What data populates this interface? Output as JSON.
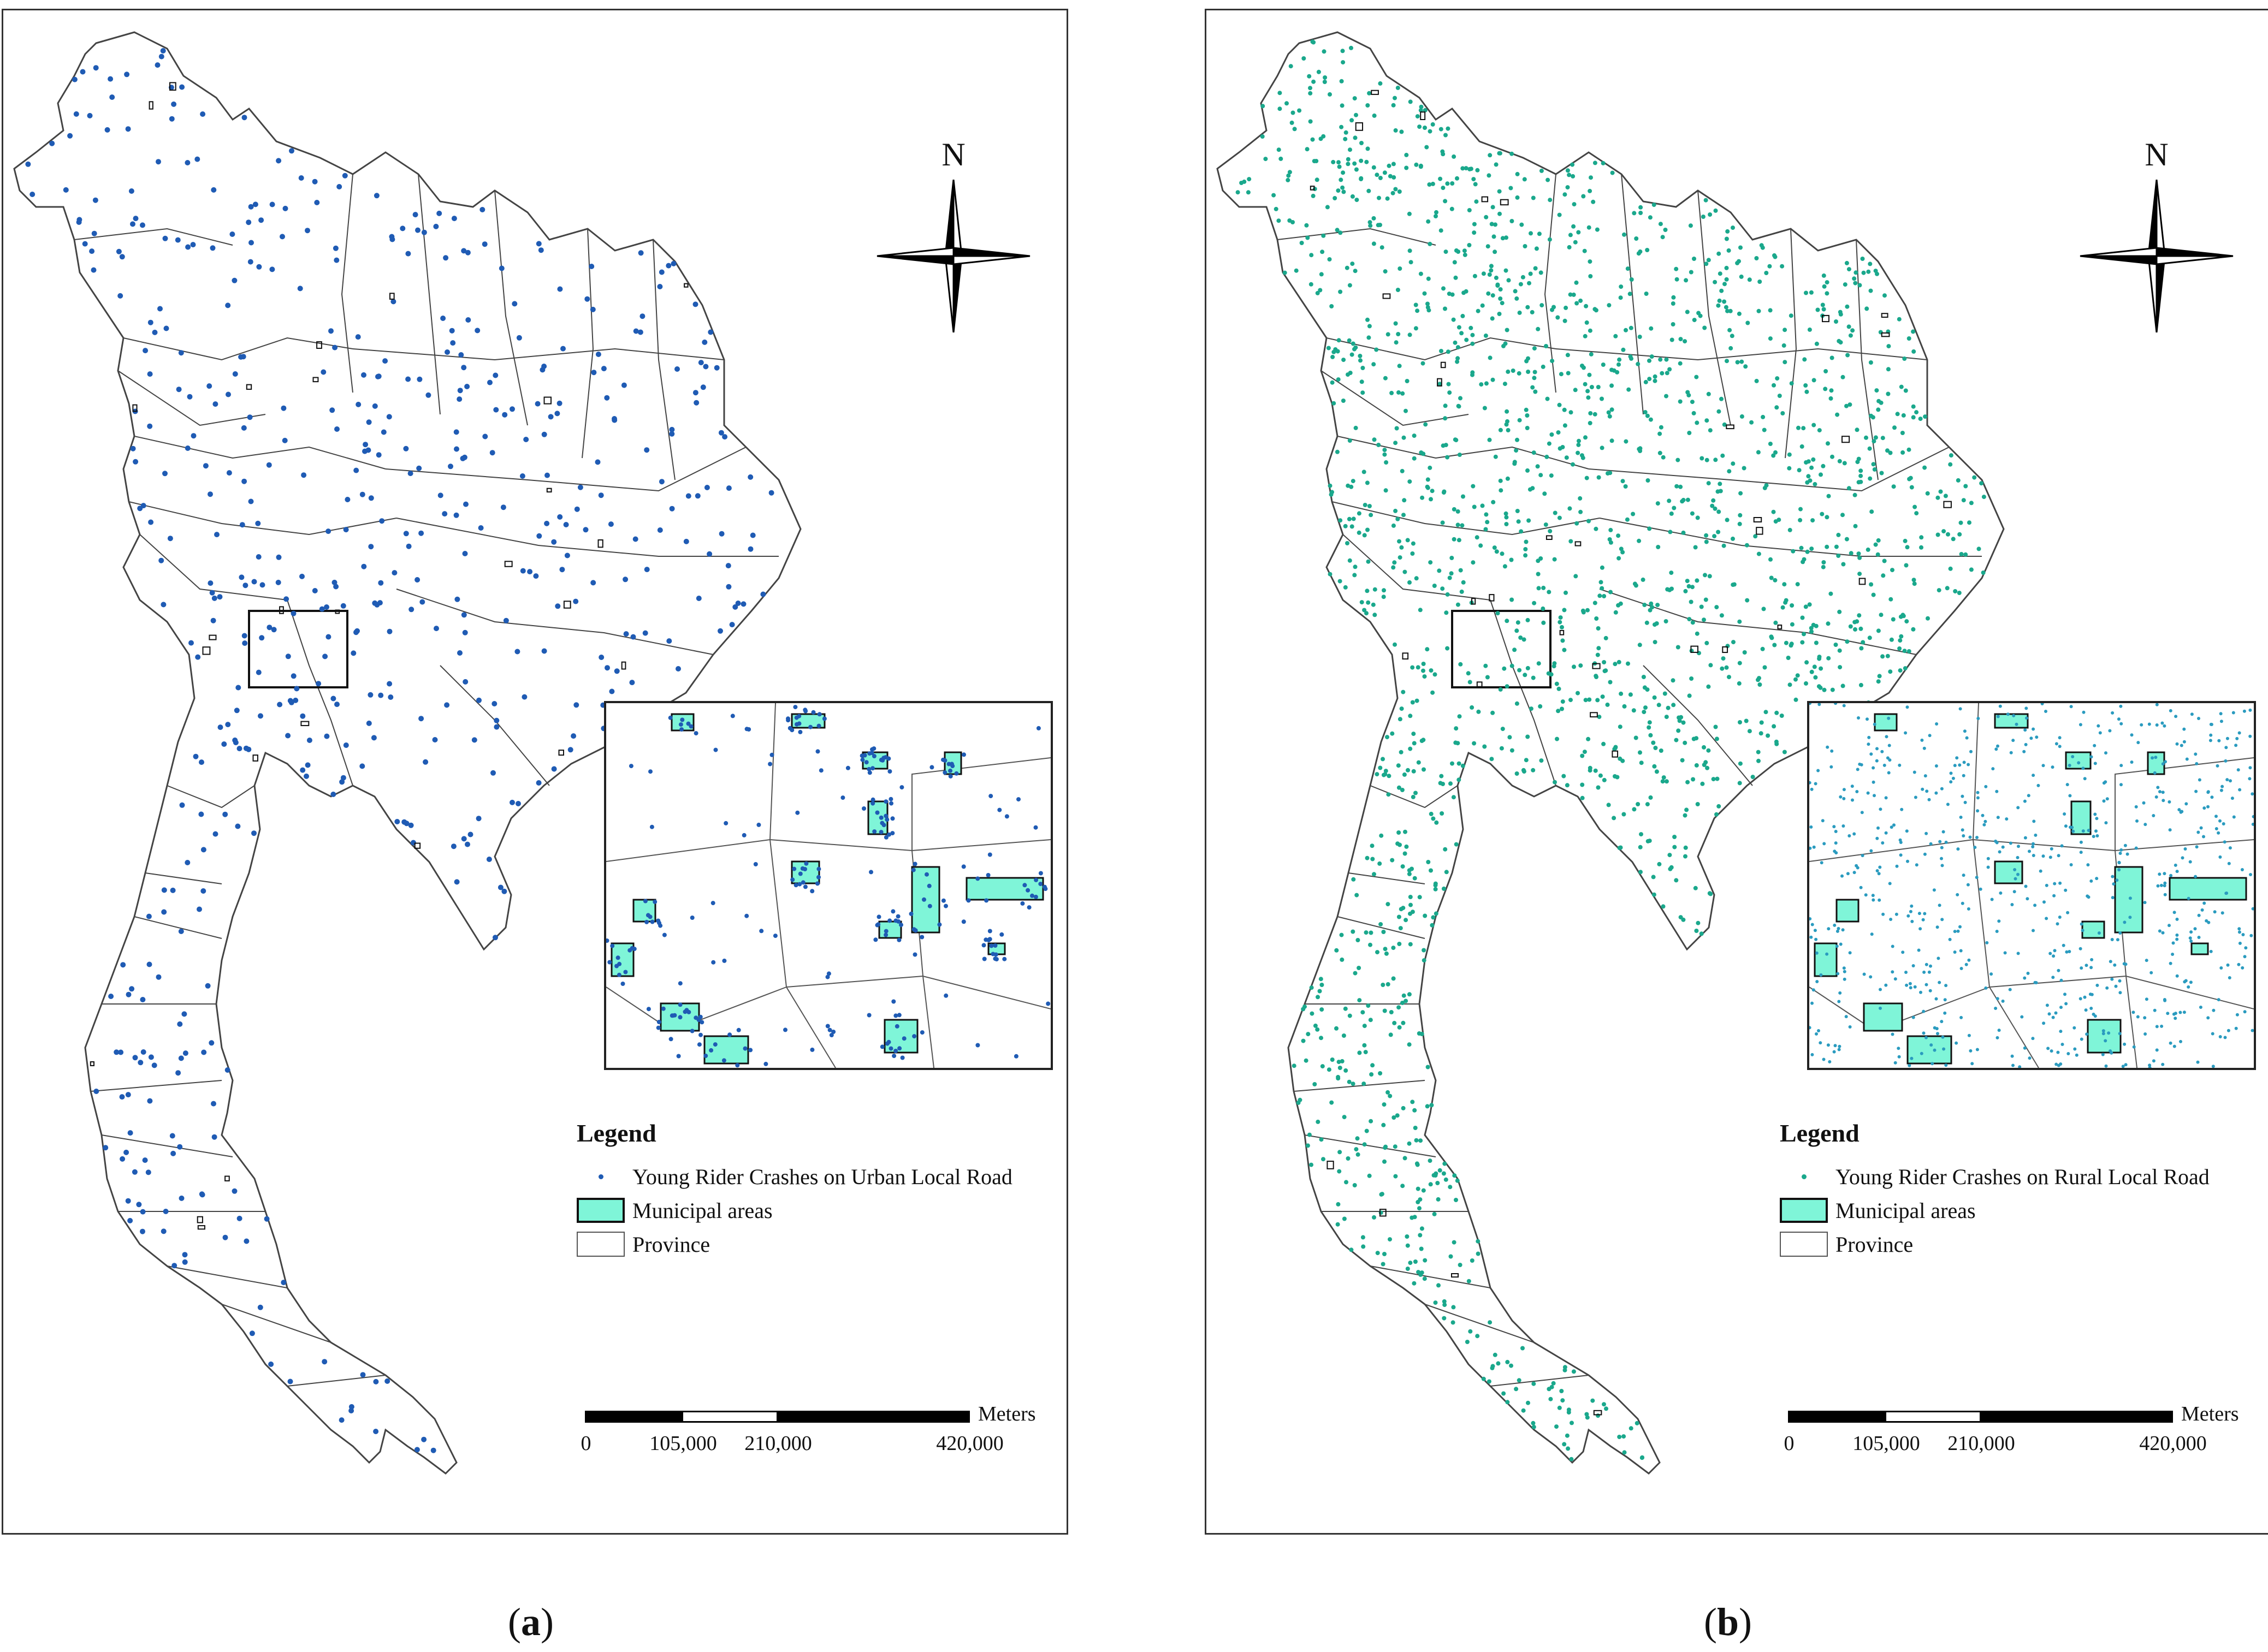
{
  "panels": [
    {
      "id": "a",
      "caption_letter": "a",
      "north_label": "N",
      "legend": {
        "title": "Legend",
        "items": [
          "Young Rider Crashes on Urban Local Road",
          "Municipal areas",
          "Province"
        ]
      },
      "scalebar": {
        "unit": "Meters",
        "ticks": [
          "0",
          "105,000",
          "210,000",
          "420,000"
        ]
      },
      "crash_color": "#1f5bb4",
      "crash_density": "sparse, clustered in urban areas"
    },
    {
      "id": "b",
      "caption_letter": "b",
      "north_label": "N",
      "legend": {
        "title": "Legend",
        "items": [
          "Young Rider Crashes on Rural Local Road",
          "Municipal areas",
          "Province"
        ]
      },
      "scalebar": {
        "unit": "Meters",
        "ticks": [
          "0",
          "105,000",
          "210,000",
          "420,000"
        ]
      },
      "crash_color": "#1aa88c",
      "crash_density": "dense, spread across the country"
    }
  ],
  "colors": {
    "municipal_fill": "#7ff5d8",
    "province_line": "#444444",
    "frame": "#333333",
    "inset_dot_b": "#2a9bbf"
  }
}
